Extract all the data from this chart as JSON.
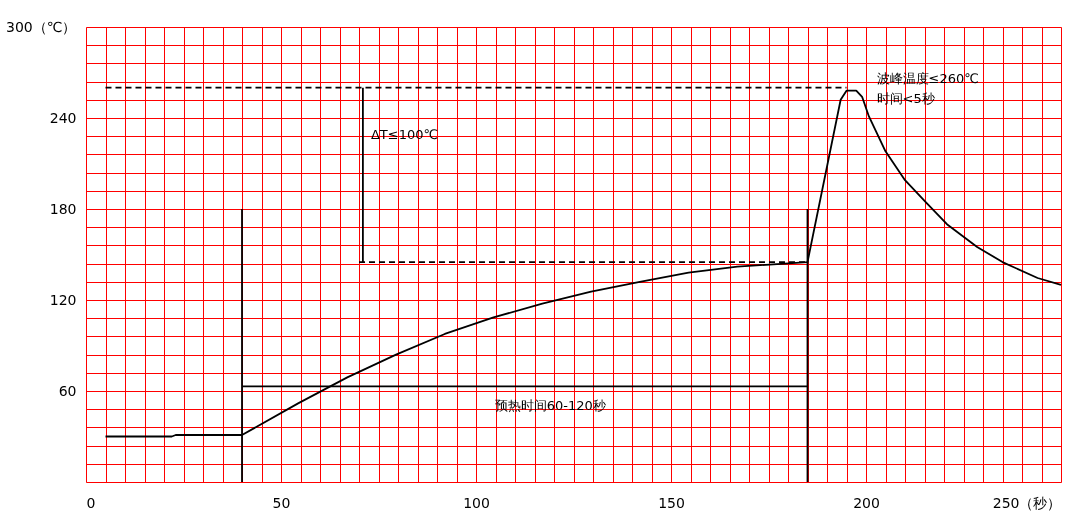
{
  "chart_data": {
    "type": "line",
    "xlim": [
      0,
      250
    ],
    "ylim": [
      0,
      300
    ],
    "xticks": [
      0,
      {
        "value": 5,
        "label": null
      },
      {
        "value": 10,
        "label": null
      },
      {
        "value": 15,
        "label": null
      },
      {
        "value": 20,
        "label": null
      },
      {
        "value": 25,
        "label": null
      },
      {
        "value": 30,
        "label": null
      },
      {
        "value": 35,
        "label": null
      },
      {
        "value": 40,
        "label": null
      },
      {
        "value": 45,
        "label": null
      },
      50,
      {
        "value": 55,
        "label": null
      },
      {
        "value": 60,
        "label": null
      },
      {
        "value": 65,
        "label": null
      },
      {
        "value": 70,
        "label": null
      },
      {
        "value": 75,
        "label": null
      },
      {
        "value": 80,
        "label": null
      },
      {
        "value": 85,
        "label": null
      },
      {
        "value": 90,
        "label": null
      },
      {
        "value": 95,
        "label": null
      },
      100,
      {
        "value": 105,
        "label": null
      },
      {
        "value": 110,
        "label": null
      },
      {
        "value": 115,
        "label": null
      },
      {
        "value": 120,
        "label": null
      },
      {
        "value": 125,
        "label": null
      },
      {
        "value": 130,
        "label": null
      },
      {
        "value": 135,
        "label": null
      },
      {
        "value": 140,
        "label": null
      },
      {
        "value": 145,
        "label": null
      },
      150,
      {
        "value": 155,
        "label": null
      },
      {
        "value": 160,
        "label": null
      },
      {
        "value": 165,
        "label": null
      },
      {
        "value": 170,
        "label": null
      },
      {
        "value": 175,
        "label": null
      },
      {
        "value": 180,
        "label": null
      },
      {
        "value": 185,
        "label": null
      },
      {
        "value": 190,
        "label": null
      },
      {
        "value": 195,
        "label": null
      },
      200,
      {
        "value": 205,
        "label": null
      },
      {
        "value": 210,
        "label": null
      },
      {
        "value": 215,
        "label": null
      },
      {
        "value": 220,
        "label": null
      },
      {
        "value": 225,
        "label": null
      },
      {
        "value": 230,
        "label": null
      },
      {
        "value": 235,
        "label": null
      },
      {
        "value": 240,
        "label": null
      },
      {
        "value": 245,
        "label": null
      },
      {
        "value": 250,
        "label": "250（秒）"
      }
    ],
    "yticks": [
      {
        "value": 0,
        "label": null
      },
      {
        "value": 12,
        "label": null
      },
      {
        "value": 24,
        "label": null
      },
      {
        "value": 36,
        "label": null
      },
      {
        "value": 48,
        "label": null
      },
      60,
      {
        "value": 72,
        "label": null
      },
      {
        "value": 84,
        "label": null
      },
      {
        "value": 96,
        "label": null
      },
      {
        "value": 108,
        "label": null
      },
      120,
      {
        "value": 132,
        "label": null
      },
      {
        "value": 144,
        "label": null
      },
      {
        "value": 156,
        "label": null
      },
      {
        "value": 168,
        "label": null
      },
      180,
      {
        "value": 192,
        "label": null
      },
      {
        "value": 204,
        "label": null
      },
      {
        "value": 216,
        "label": null
      },
      {
        "value": 228,
        "label": null
      },
      240,
      {
        "value": 252,
        "label": null
      },
      {
        "value": 264,
        "label": null
      },
      {
        "value": 276,
        "label": null
      },
      {
        "value": 288,
        "label": null
      },
      {
        "value": 300,
        "label": "300（℃）"
      }
    ],
    "grid": true,
    "marker": "none",
    "series": [
      {
        "color": "#000000",
        "line_style": "solid",
        "x": [
          5,
          22,
          23,
          40,
          54.5,
          67,
          79.5,
          92,
          104.5,
          117,
          129.5,
          142,
          154.5,
          167,
          185,
          193.5,
          195,
          197.5,
          199,
          200.75,
          205,
          210,
          215.5,
          220.75,
          228.5,
          235,
          244,
          250
        ],
        "values": [
          30,
          30,
          31,
          31,
          52,
          69,
          84,
          97.6,
          108.5,
          117.6,
          125.5,
          132,
          138,
          142,
          145,
          252,
          258,
          258,
          254,
          241,
          218,
          199,
          184,
          170,
          155,
          145,
          134.5,
          130
        ]
      },
      {
        "color": "#000000",
        "line_style": "dashed",
        "x": [
          5,
          195
        ],
        "values": [
          260,
          260
        ]
      },
      {
        "color": "#000000",
        "line_style": "dashed",
        "x": [
          70,
          185
        ],
        "values": [
          145,
          145
        ]
      },
      {
        "color": "#000000",
        "line_style": "solid",
        "x": [
          40,
          40
        ],
        "values": [
          0,
          180
        ]
      },
      {
        "color": "#000000",
        "line_style": "solid",
        "x": [
          185,
          185
        ],
        "values": [
          0,
          180
        ]
      },
      {
        "color": "#000000",
        "line_style": "solid",
        "x": [
          71,
          71
        ],
        "values": [
          145,
          260
        ]
      },
      {
        "color": "#000000",
        "line_style": "solid",
        "x": [
          40,
          185
        ],
        "values": [
          63,
          63
        ]
      }
    ],
    "annotations": [
      "ΔT≤100℃",
      "预热时间60-120秒",
      "波峰温度≤260℃",
      "时间<5秒"
    ]
  }
}
